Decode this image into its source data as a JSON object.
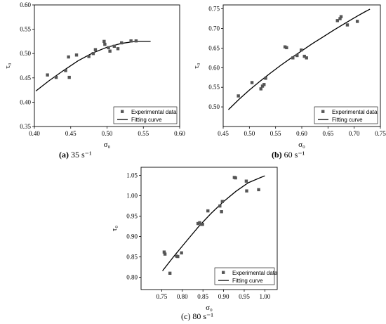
{
  "chart_data": [
    {
      "type": "scatter",
      "caption": "(a) 35 s⁻¹",
      "caption_bold_part": "(a)",
      "caption_rest": " 35 s⁻¹",
      "xlabel": "σ₀",
      "ylabel": "τ₀",
      "xlim": [
        0.4,
        0.6
      ],
      "ylim": [
        0.35,
        0.6
      ],
      "x_ticks": [
        "0.40",
        "0.45",
        "0.50",
        "0.55",
        "0.60"
      ],
      "y_ticks": [
        "0.35",
        "0.40",
        "0.45",
        "0.50",
        "0.55",
        "0.60"
      ],
      "legend_position": "bottom-right",
      "series": [
        {
          "name": "Experimental data",
          "kind": "scatter",
          "x": [
            0.418,
            0.43,
            0.443,
            0.447,
            0.448,
            0.458,
            0.475,
            0.481,
            0.484,
            0.496,
            0.497,
            0.502,
            0.504,
            0.51,
            0.515,
            0.52,
            0.533,
            0.54
          ],
          "y": [
            0.456,
            0.451,
            0.465,
            0.493,
            0.451,
            0.497,
            0.494,
            0.5,
            0.508,
            0.525,
            0.519,
            0.512,
            0.505,
            0.515,
            0.51,
            0.522,
            0.526,
            0.526
          ]
        },
        {
          "name": "Fitting curve",
          "kind": "line",
          "x": [
            0.402,
            0.42,
            0.44,
            0.46,
            0.48,
            0.5,
            0.52,
            0.54,
            0.56
          ],
          "y": [
            0.423,
            0.444,
            0.465,
            0.485,
            0.501,
            0.513,
            0.521,
            0.525,
            0.525
          ]
        }
      ]
    },
    {
      "type": "scatter",
      "caption": "(b) 60 s⁻¹",
      "caption_bold_part": "(b)",
      "caption_rest": " 60 s⁻¹",
      "xlabel": "σ₀",
      "ylabel": "τ₀",
      "xlim": [
        0.45,
        0.75
      ],
      "ylim": [
        0.45,
        0.76
      ],
      "x_ticks": [
        "0.45",
        "0.50",
        "0.55",
        "0.60",
        "0.65",
        "0.70",
        "0.75"
      ],
      "y_ticks": [
        "0.50",
        "0.55",
        "0.60",
        "0.65",
        "0.70",
        "0.75"
      ],
      "legend_position": "bottom-right",
      "series": [
        {
          "name": "Experimental data",
          "kind": "scatter",
          "x": [
            0.479,
            0.505,
            0.522,
            0.525,
            0.528,
            0.531,
            0.568,
            0.571,
            0.583,
            0.591,
            0.599,
            0.605,
            0.609,
            0.668,
            0.673,
            0.675,
            0.687,
            0.706
          ],
          "y": [
            0.528,
            0.562,
            0.546,
            0.553,
            0.557,
            0.573,
            0.653,
            0.651,
            0.625,
            0.631,
            0.645,
            0.629,
            0.625,
            0.72,
            0.725,
            0.73,
            0.709,
            0.718
          ]
        },
        {
          "name": "Fitting curve",
          "kind": "line",
          "x": [
            0.46,
            0.48,
            0.5,
            0.52,
            0.54,
            0.56,
            0.58,
            0.6,
            0.62,
            0.64,
            0.66,
            0.68,
            0.7,
            0.72,
            0.73
          ],
          "y": [
            0.493,
            0.519,
            0.543,
            0.565,
            0.586,
            0.606,
            0.625,
            0.643,
            0.661,
            0.678,
            0.695,
            0.711,
            0.727,
            0.742,
            0.749
          ]
        }
      ]
    },
    {
      "type": "scatter",
      "caption": "(c) 80 s⁻¹",
      "caption_bold_part": "",
      "caption_rest": "(c) 80 s⁻¹",
      "xlabel": "σ₀",
      "ylabel": "τ₀",
      "xlim": [
        0.7,
        1.03
      ],
      "ylim": [
        0.77,
        1.07
      ],
      "x_ticks": [
        "0.75",
        "0.80",
        "0.85",
        "0.90",
        "0.95",
        "1.00"
      ],
      "y_ticks": [
        "0.80",
        "0.85",
        "0.90",
        "0.95",
        "1.00",
        "1.05"
      ],
      "legend_position": "bottom-right",
      "series": [
        {
          "name": "Experimental data",
          "kind": "scatter",
          "x": [
            0.756,
            0.758,
            0.77,
            0.786,
            0.789,
            0.798,
            0.838,
            0.842,
            0.846,
            0.849,
            0.862,
            0.891,
            0.895,
            0.897,
            0.926,
            0.929,
            0.955,
            0.956,
            0.985
          ],
          "y": [
            0.862,
            0.857,
            0.81,
            0.852,
            0.851,
            0.86,
            0.932,
            0.934,
            0.93,
            0.93,
            0.963,
            0.975,
            0.961,
            0.986,
            1.045,
            1.044,
            1.036,
            1.012,
            1.015
          ]
        },
        {
          "name": "Fitting curve",
          "kind": "line",
          "x": [
            0.752,
            0.78,
            0.81,
            0.84,
            0.87,
            0.9,
            0.93,
            0.96,
            0.99,
            1.0
          ],
          "y": [
            0.816,
            0.852,
            0.889,
            0.925,
            0.957,
            0.986,
            1.011,
            1.032,
            1.045,
            1.049
          ]
        }
      ]
    }
  ]
}
